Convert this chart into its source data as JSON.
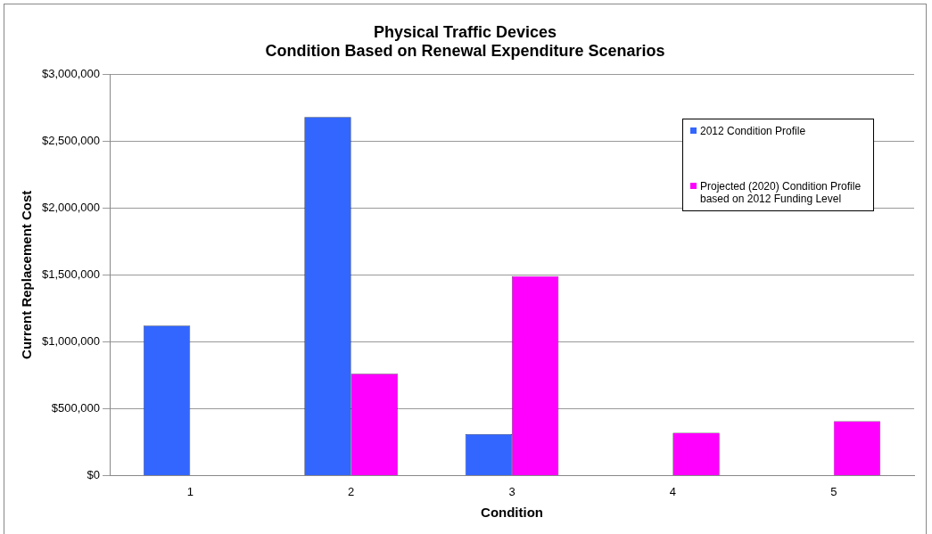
{
  "chart_data": {
    "type": "bar",
    "title": "Physical Traffic Devices\nCondition Based on Renewal Expenditure Scenarios",
    "xlabel": "Condition",
    "ylabel": "Current Replacement Cost",
    "categories": [
      "1",
      "2",
      "3",
      "4",
      "5"
    ],
    "series": [
      {
        "name": "2012 Condition Profile",
        "color": "#3366ff",
        "values": [
          1120000,
          2680000,
          310000,
          0,
          0
        ]
      },
      {
        "name": "Projected (2020) Condition Profile based on 2012 Funding Level",
        "color": "#ff00ff",
        "values": [
          0,
          760000,
          1490000,
          320000,
          405000
        ]
      }
    ],
    "ylim": [
      0,
      3000000
    ],
    "yticks": [
      {
        "value": 0,
        "label": "$0"
      },
      {
        "value": 500000,
        "label": "$500,000"
      },
      {
        "value": 1000000,
        "label": "$1,000,000"
      },
      {
        "value": 1500000,
        "label": "$1,500,000"
      },
      {
        "value": 2000000,
        "label": "$2,000,000"
      },
      {
        "value": 2500000,
        "label": "$2,500,000"
      },
      {
        "value": 3000000,
        "label": "$3,000,000"
      }
    ],
    "grid": "y",
    "legend": "top right"
  }
}
